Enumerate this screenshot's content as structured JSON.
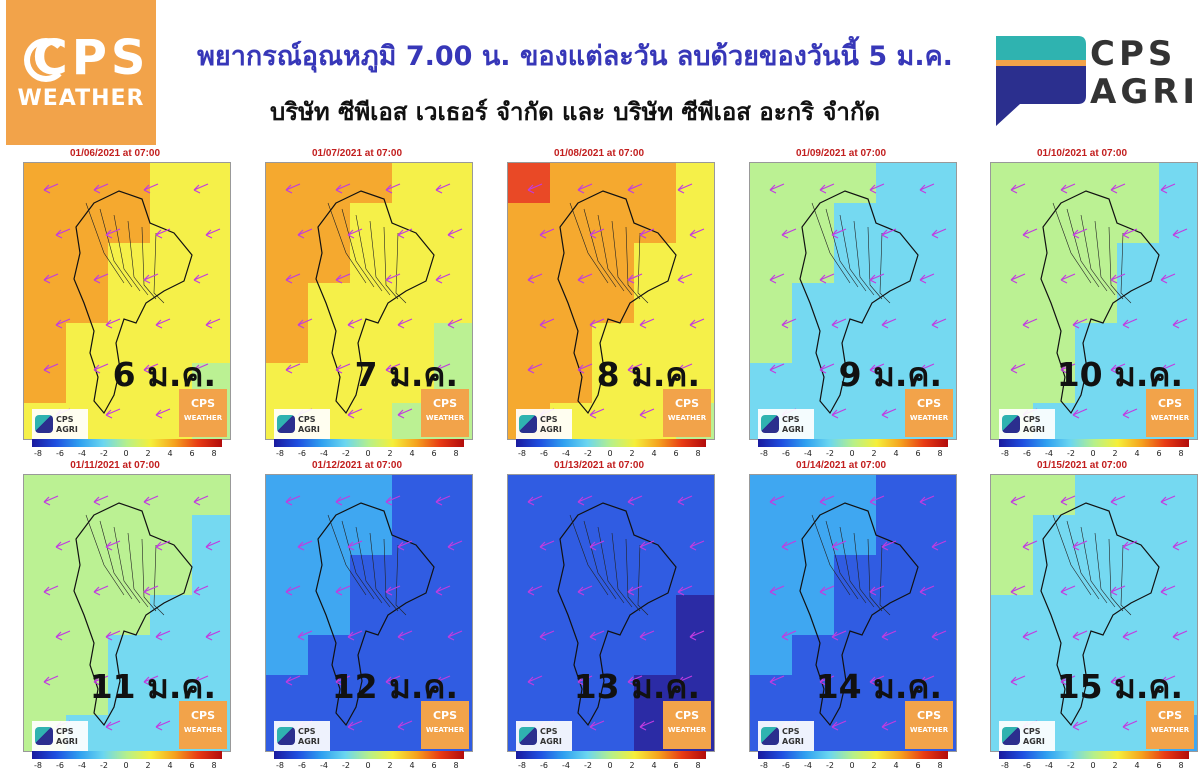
{
  "header": {
    "title_line1": "พยากรณ์อุณหภูมิ 7.00 น. ของแต่ละวัน ลบด้วยของวันนี้ 5 ม.ค.",
    "title_line2": "บริษัท ซีพีเอส เวเธอร์ จำกัด และ บริษัท ซีพีเอส อะกริ จำกัด"
  },
  "logo_left": {
    "line1": "CPS",
    "line2": "WEATHER",
    "bg": "#f2a34a"
  },
  "logo_right": {
    "line1": "CPS",
    "line2": "AGRI"
  },
  "colorbar": {
    "ticks": [
      "-8",
      "-6",
      "-4",
      "-2",
      "0",
      "2",
      "4",
      "6",
      "8"
    ],
    "colors": [
      "#1a1a9e",
      "#1f4fe0",
      "#2fa0f0",
      "#6ad6f0",
      "#b6f08a",
      "#f5ef3a",
      "#f5a21e",
      "#e83a14",
      "#b20c0c"
    ]
  },
  "mini_logo": {
    "agri_line1": "CPS",
    "agri_line2": "AGRI",
    "weather_line1": "CPS",
    "weather_line2": "WEATHER"
  },
  "panels": [
    {
      "date": "01/06/2021 at 07:00",
      "label": "6 ม.ค.",
      "anomaly": 2.5
    },
    {
      "date": "01/07/2021 at 07:00",
      "label": "7 ม.ค.",
      "anomaly": 2.3
    },
    {
      "date": "01/08/2021 at 07:00",
      "label": "8 ม.ค.",
      "anomaly": 3.0
    },
    {
      "date": "01/09/2021 at 07:00",
      "label": "9 ม.ค.",
      "anomaly": -1.5
    },
    {
      "date": "01/10/2021 at 07:00",
      "label": "10 ม.ค.",
      "anomaly": -1.0
    },
    {
      "date": "01/11/2021 at 07:00",
      "label": "11 ม.ค.",
      "anomaly": -0.5
    },
    {
      "date": "01/12/2021 at 07:00",
      "label": "12 ม.ค.",
      "anomaly": -5.0
    },
    {
      "date": "01/13/2021 at 07:00",
      "label": "13 ม.ค.",
      "anomaly": -6.0
    },
    {
      "date": "01/14/2021 at 07:00",
      "label": "14 ม.ค.",
      "anomaly": -5.0
    },
    {
      "date": "01/15/2021 at 07:00",
      "label": "15 ม.ค.",
      "anomaly": -1.5
    }
  ]
}
